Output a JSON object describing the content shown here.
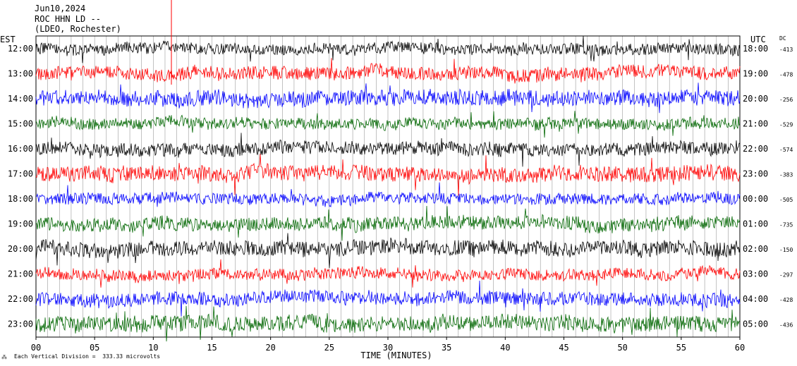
{
  "header": {
    "date": "Jun10,2024",
    "station": "ROC HHN LD --",
    "network": "(LDEO, Rochester)"
  },
  "footer": {
    "note": "Each Vertical Division =  333.33 microvolts"
  },
  "chart_data": {
    "type": "line",
    "title": "",
    "xlabel": "TIME (MINUTES)",
    "left_axis_label": "EST",
    "right_axis_label": "UTC",
    "dc_header": "DC",
    "xlim": [
      0,
      60
    ],
    "x_ticks": [
      "00",
      "05",
      "10",
      "15",
      "20",
      "25",
      "30",
      "35",
      "40",
      "45",
      "50",
      "55",
      "60"
    ],
    "grid": "vertical lines every minute",
    "trace_colors": [
      "#000000",
      "#ff0000",
      "#0000ff",
      "#006600"
    ],
    "rows": [
      {
        "est": "12:00",
        "utc": "18:00",
        "dc": "-413",
        "color": "#000000"
      },
      {
        "est": "13:00",
        "utc": "19:00",
        "dc": "-478",
        "color": "#ff0000"
      },
      {
        "est": "14:00",
        "utc": "20:00",
        "dc": "-256",
        "color": "#0000ff"
      },
      {
        "est": "15:00",
        "utc": "21:00",
        "dc": "-529",
        "color": "#006600"
      },
      {
        "est": "16:00",
        "utc": "22:00",
        "dc": "-574",
        "color": "#000000"
      },
      {
        "est": "17:00",
        "utc": "23:00",
        "dc": "-383",
        "color": "#ff0000"
      },
      {
        "est": "18:00",
        "utc": "00:00",
        "dc": "-505",
        "color": "#0000ff"
      },
      {
        "est": "19:00",
        "utc": "01:00",
        "dc": "-735",
        "color": "#006600"
      },
      {
        "est": "20:00",
        "utc": "02:00",
        "dc": "-150",
        "color": "#000000"
      },
      {
        "est": "21:00",
        "utc": "03:00",
        "dc": "-297",
        "color": "#ff0000"
      },
      {
        "est": "22:00",
        "utc": "04:00",
        "dc": "-428",
        "color": "#0000ff"
      },
      {
        "est": "23:00",
        "utc": "05:00",
        "dc": "-436",
        "color": "#006600"
      }
    ]
  }
}
